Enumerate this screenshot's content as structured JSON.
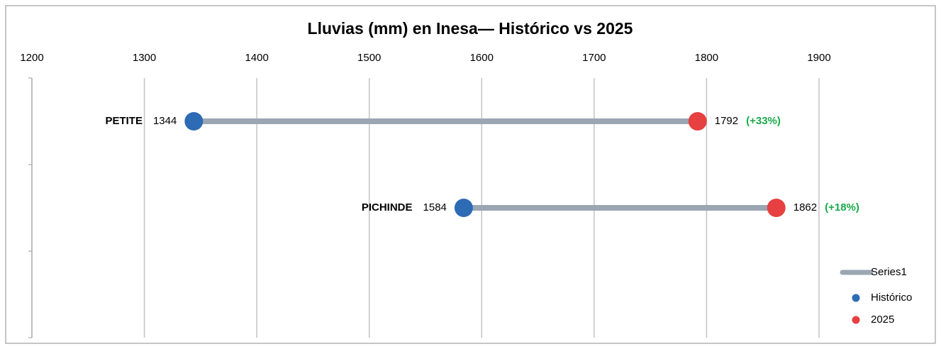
{
  "chart_data": {
    "type": "dumbbell",
    "title": "Lluvias (mm) en Inesa— Histórico vs 2025",
    "categories": [
      "PETITE",
      "PICHINDE",
      null
    ],
    "series": [
      {
        "name": "Series1",
        "color": "#9aa6b2"
      },
      {
        "name": "Histórico",
        "color": "#2e6bb5",
        "values": [
          1344,
          1584,
          null
        ]
      },
      {
        "name": "2025",
        "color": "#e64040",
        "values": [
          1792,
          1862,
          null
        ]
      }
    ],
    "change_labels": [
      "(+33%)",
      "(+18%)",
      null
    ],
    "change_color": "#1aaa4a",
    "xlim": [
      1200,
      1900
    ],
    "xticks": [
      1200,
      1300,
      1400,
      1500,
      1600,
      1700,
      1800,
      1900
    ],
    "grid": true,
    "legend": "lower right"
  }
}
